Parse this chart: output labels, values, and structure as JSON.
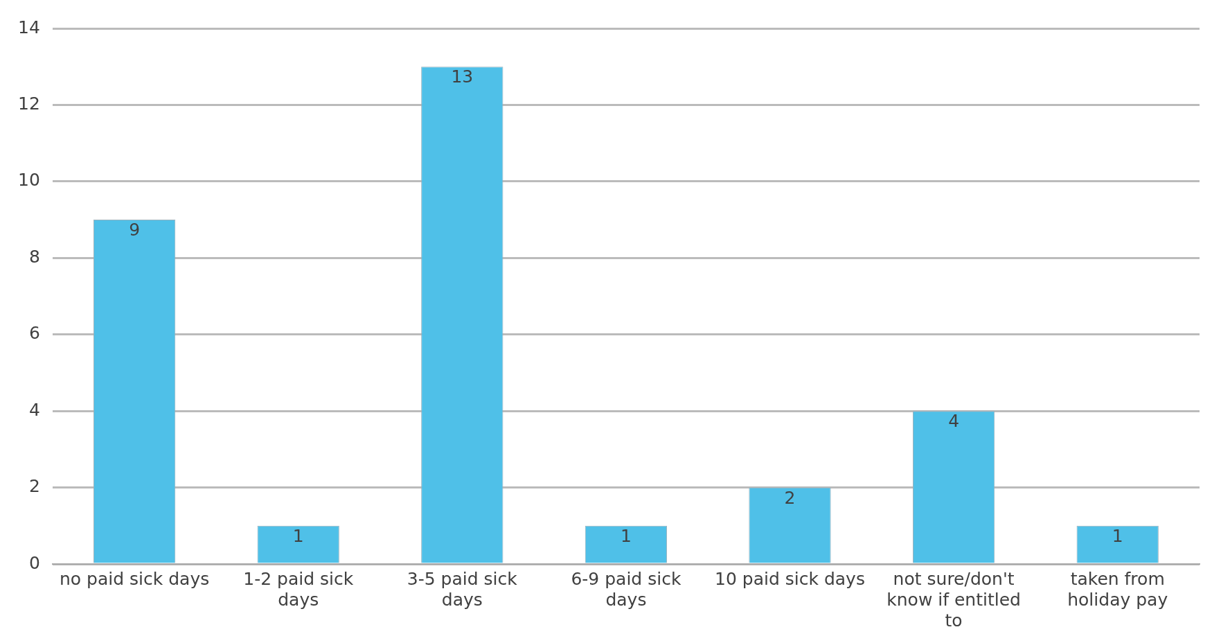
{
  "chart_data": {
    "type": "bar",
    "categories": [
      "no paid sick days",
      "1-2 paid sick days",
      "3-5 paid sick days",
      "6-9 paid sick days",
      "10 paid sick days",
      "not sure/don't know if entitled to",
      "taken from holiday pay"
    ],
    "values": [
      9,
      1,
      13,
      1,
      2,
      4,
      1
    ],
    "color": "#4fc0e8",
    "ylim": [
      0,
      14
    ],
    "yticks": [
      0,
      2,
      4,
      6,
      8,
      10,
      12,
      14
    ],
    "grid": "y",
    "data_labels": true
  }
}
